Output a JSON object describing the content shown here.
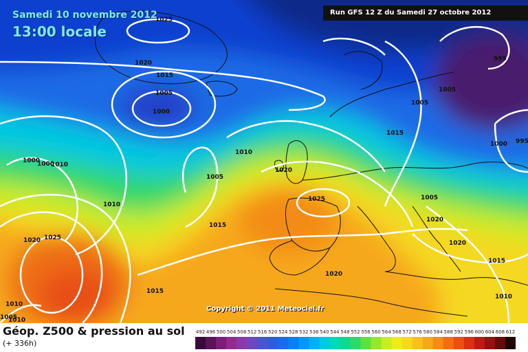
{
  "header": {
    "date": "Samedi 10 novembre 2012",
    "local_time": "13:00 locale",
    "run": "Run GFS 12 Z du Samedi 27 octobre 2012"
  },
  "map": {
    "copyright": "Copyright © 2011 Meteociel.fr",
    "isobar_labels": [
      "1025",
      "1020",
      "1015",
      "1005",
      "1000",
      "1010",
      "1005",
      "1000",
      "1000",
      "1010",
      "1005",
      "1015",
      "1025",
      "1020",
      "1020",
      "1020",
      "1015",
      "1010",
      "1005",
      "1015",
      "1020",
      "1025",
      "1010",
      "1005",
      "995",
      "1005",
      "1010",
      "1000",
      "995",
      "1015",
      "1020",
      "1010"
    ]
  },
  "footer": {
    "title": "Géop. Z500 & pression au sol",
    "subtitle": "(+ 336h)",
    "scale_values": [
      "492",
      "496",
      "500",
      "504",
      "508",
      "512",
      "516",
      "520",
      "524",
      "528",
      "532",
      "536",
      "540",
      "544",
      "548",
      "552",
      "556",
      "560",
      "564",
      "568",
      "572",
      "576",
      "580",
      "584",
      "588",
      "592",
      "596",
      "600",
      "604",
      "608",
      "612"
    ],
    "scale_colors": [
      "#3b0a3b",
      "#5a1458",
      "#7a1e78",
      "#952a8c",
      "#8a3aa8",
      "#6d48c0",
      "#4a55cc",
      "#2c5ed8",
      "#1a6be6",
      "#0b7ef0",
      "#0797f5",
      "#00b0f0",
      "#00c8e0",
      "#00d8b8",
      "#10d890",
      "#30d868",
      "#60e040",
      "#98e630",
      "#c8ec28",
      "#ecec20",
      "#f5d820",
      "#f7c020",
      "#f6a81c",
      "#f38c18",
      "#ef6e16",
      "#e85014",
      "#d83214",
      "#b81c14",
      "#901410",
      "#640c0c",
      "#200404"
    ]
  },
  "colors": {
    "header_text": "#7fe9ff",
    "isobar": "#ffffff"
  }
}
